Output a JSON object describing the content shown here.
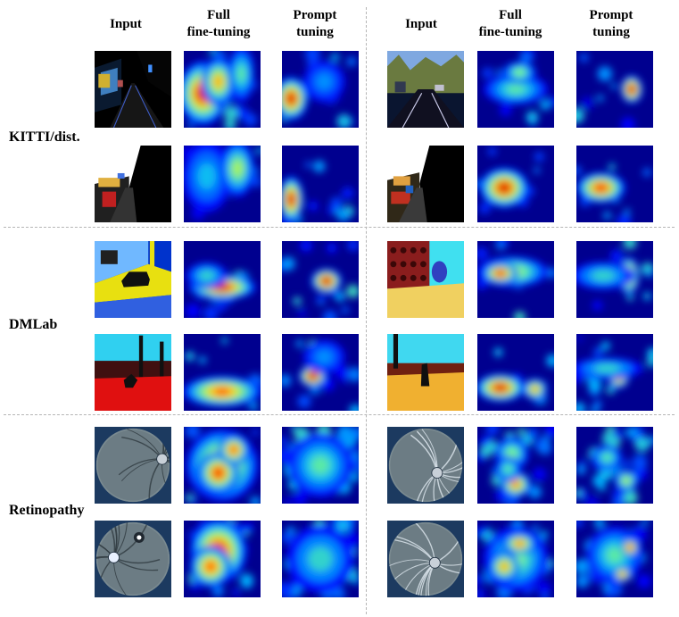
{
  "figure": {
    "column_headers": [
      "Input",
      "Full\nfine-tuning",
      "Prompt\ntuning",
      "Input",
      "Full\nfine-tuning",
      "Prompt\ntuning"
    ],
    "header_parts": {
      "input": "Input",
      "full_1": "Full",
      "full_2": "fine-tuning",
      "prompt_1": "Prompt",
      "prompt_2": "tuning"
    },
    "groups": [
      {
        "label": "KITTI/dist.",
        "input_scene": "road"
      },
      {
        "label": "DMLab",
        "input_scene": "game"
      },
      {
        "label": "Retinopathy",
        "input_scene": "retina"
      }
    ],
    "colormap": [
      "#00008f",
      "#0000ff",
      "#00b4ff",
      "#80ff80",
      "#ffd200",
      "#ff2a00",
      "#9a0000"
    ]
  }
}
